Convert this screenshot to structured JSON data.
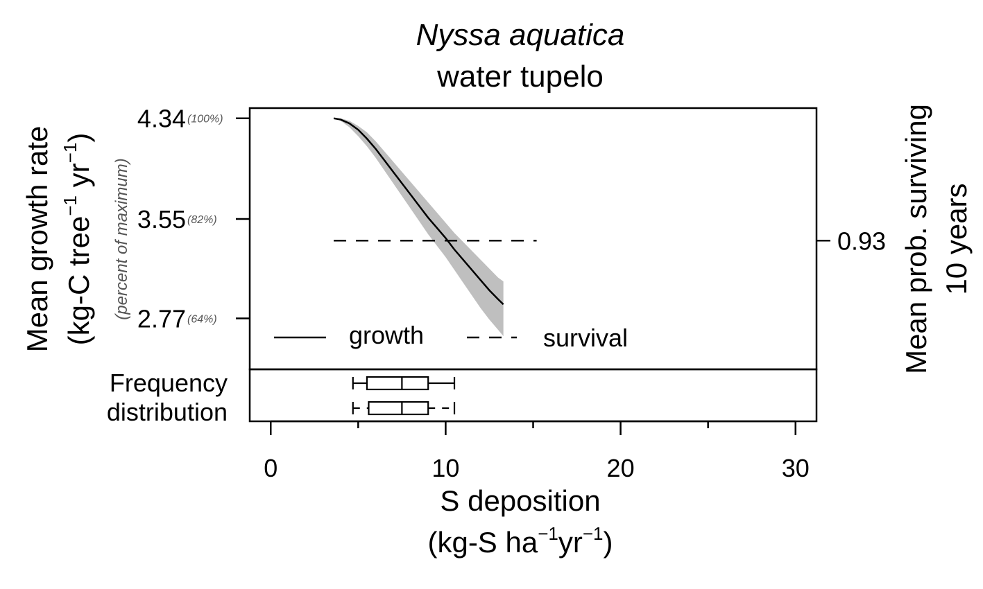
{
  "chart_data": {
    "type": "line",
    "title": "Nyssa aquatica",
    "subtitle": "water tupelo",
    "xlabel": {
      "line1": "S deposition",
      "line2_pre": "(kg-S ha",
      "line2_sup1": "−1",
      "line2_mid": "yr",
      "line2_sup2": "−1",
      "line2_post": ")"
    },
    "ylabel": {
      "line1": "Mean growth rate",
      "line2_pre": "(kg-C tree",
      "line2_sup1": "−1",
      "line2_mid": " yr",
      "line2_sup2": "−1",
      "line2_post": ")"
    },
    "ylabel_secondary": "(percent of maximum)",
    "y2label": {
      "line1": "Mean prob. surviving",
      "line2": "10 years"
    },
    "xlim": [
      -1.2,
      31.2
    ],
    "ylim": [
      2.37,
      4.42
    ],
    "x_ticks": [
      0,
      10,
      20,
      30
    ],
    "x_minor_ticks": [
      5,
      15,
      25
    ],
    "y_ticks": [
      {
        "value": 4.34,
        "label": "4.34",
        "pct": "(100%)"
      },
      {
        "value": 3.55,
        "label": "3.55",
        "pct": "(82%)"
      },
      {
        "value": 2.77,
        "label": "2.77",
        "pct": "(64%)"
      }
    ],
    "y2_ticks": [
      {
        "value": 3.38,
        "label": "0.93"
      }
    ],
    "series": [
      {
        "name": "growth",
        "style": "solid",
        "x": [
          3.6,
          4.0,
          4.5,
          5.0,
          5.5,
          6.0,
          6.5,
          7.0,
          7.5,
          8.0,
          8.5,
          9.0,
          9.5,
          10.0,
          10.5,
          11.0,
          11.5,
          12.0,
          12.5,
          13.0,
          13.3
        ],
        "y": [
          4.34,
          4.33,
          4.3,
          4.25,
          4.18,
          4.1,
          4.01,
          3.92,
          3.83,
          3.74,
          3.65,
          3.56,
          3.48,
          3.4,
          3.31,
          3.23,
          3.15,
          3.07,
          2.99,
          2.92,
          2.88
        ],
        "band_lower": [
          4.34,
          4.32,
          4.27,
          4.2,
          4.12,
          4.03,
          3.93,
          3.83,
          3.73,
          3.63,
          3.53,
          3.43,
          3.34,
          3.25,
          3.15,
          3.05,
          2.95,
          2.85,
          2.76,
          2.68,
          2.63
        ],
        "band_upper": [
          4.34,
          4.34,
          4.32,
          4.28,
          4.23,
          4.16,
          4.08,
          4.0,
          3.92,
          3.84,
          3.76,
          3.68,
          3.6,
          3.52,
          3.44,
          3.37,
          3.3,
          3.23,
          3.16,
          3.09,
          3.06
        ]
      },
      {
        "name": "survival",
        "style": "dashed",
        "x": [
          3.6,
          15.2
        ],
        "y": [
          3.38,
          3.38
        ]
      }
    ],
    "band_color": "#bfbfbf",
    "legend": {
      "growth": "growth",
      "survival": "survival",
      "position": "bottom-left"
    },
    "frequency": {
      "label_line1": "Frequency",
      "label_line2": "distribution",
      "boxes": [
        {
          "whisker_low": 4.7,
          "q1": 5.5,
          "median": 7.5,
          "q3": 9.0,
          "whisker_high": 10.5,
          "whisker_style": "solid"
        },
        {
          "whisker_low": 4.7,
          "q1": 5.6,
          "median": 7.5,
          "q3": 9.0,
          "whisker_high": 10.5,
          "whisker_style": "dashed"
        }
      ]
    }
  }
}
